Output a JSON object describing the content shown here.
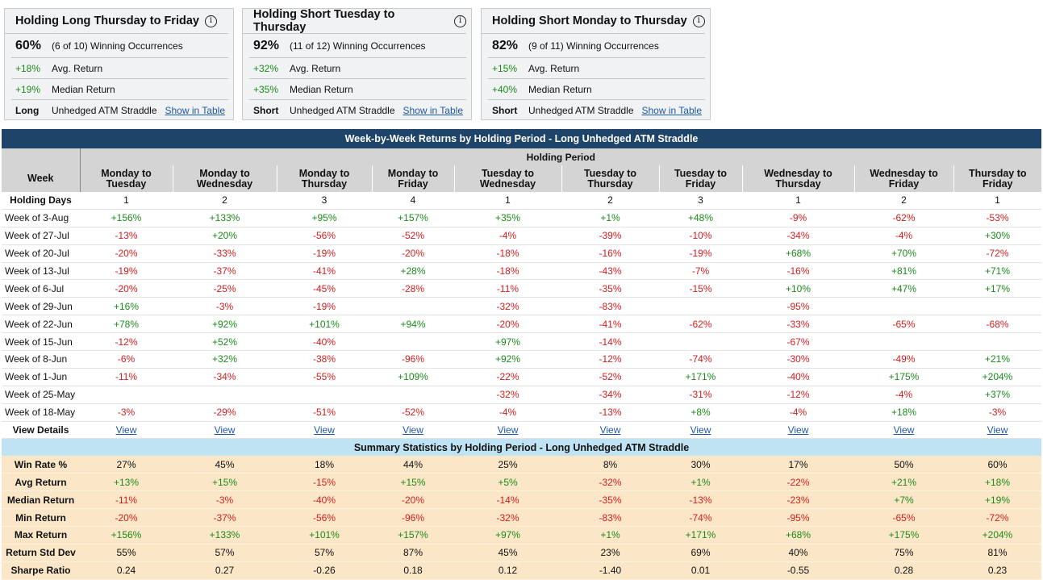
{
  "cards": [
    {
      "title": "Holding Long Thursday to Friday",
      "pct": "60%",
      "occ": "(6 of 10) Winning Occurrences",
      "avg": "+18%",
      "avg_label": "Avg. Return",
      "med": "+19%",
      "med_label": "Median Return",
      "side": "Long",
      "strategy": "Unhedged ATM Straddle",
      "link": "Show in Table"
    },
    {
      "title": "Holding Short Tuesday to Thursday",
      "pct": "92%",
      "occ": "(11 of 12) Winning Occurrences",
      "avg": "+32%",
      "avg_label": "Avg. Return",
      "med": "+35%",
      "med_label": "Median Return",
      "side": "Short",
      "strategy": "Unhedged ATM Straddle",
      "link": "Show in Table"
    },
    {
      "title": "Holding Short Monday to Thursday",
      "pct": "82%",
      "occ": "(9 of 11) Winning Occurrences",
      "avg": "+15%",
      "avg_label": "Avg. Return",
      "med": "+40%",
      "med_label": "Median Return",
      "side": "Short",
      "strategy": "Unhedged ATM Straddle",
      "link": "Show in Table"
    }
  ],
  "table": {
    "title": "Week-by-Week Returns by Holding Period - Long Unhedged ATM Straddle",
    "holding_period_label": "Holding Period",
    "week_header": "Week",
    "columns": [
      [
        "Monday to",
        "Tuesday"
      ],
      [
        "Monday to",
        "Wednesday"
      ],
      [
        "Monday to",
        "Thursday"
      ],
      [
        "Monday to",
        "Friday"
      ],
      [
        "Tuesday to",
        "Wednesday"
      ],
      [
        "Tuesday to",
        "Thursday"
      ],
      [
        "Tuesday to",
        "Friday"
      ],
      [
        "Wednesday to",
        "Thursday"
      ],
      [
        "Wednesday to",
        "Friday"
      ],
      [
        "Thursday to",
        "Friday"
      ]
    ],
    "holding_days_label": "Holding Days",
    "holding_days": [
      "1",
      "2",
      "3",
      "4",
      "1",
      "2",
      "3",
      "1",
      "2",
      "1"
    ],
    "weeks": [
      {
        "label": "Week of 3-Aug",
        "values": [
          "+156%",
          "+133%",
          "+95%",
          "+157%",
          "+35%",
          "+1%",
          "+48%",
          "-9%",
          "-62%",
          "-53%"
        ]
      },
      {
        "label": "Week of 27-Jul",
        "values": [
          "-13%",
          "+20%",
          "-56%",
          "-52%",
          "-4%",
          "-39%",
          "-10%",
          "-34%",
          "-4%",
          "+30%"
        ]
      },
      {
        "label": "Week of 20-Jul",
        "values": [
          "-20%",
          "-33%",
          "-19%",
          "-20%",
          "-18%",
          "-16%",
          "-19%",
          "+68%",
          "+70%",
          "-72%"
        ]
      },
      {
        "label": "Week of 13-Jul",
        "values": [
          "-19%",
          "-37%",
          "-41%",
          "+28%",
          "-18%",
          "-43%",
          "-7%",
          "-16%",
          "+81%",
          "+71%"
        ]
      },
      {
        "label": "Week of 6-Jul",
        "values": [
          "-20%",
          "-25%",
          "-45%",
          "-28%",
          "-11%",
          "-35%",
          "-15%",
          "+10%",
          "+47%",
          "+17%"
        ]
      },
      {
        "label": "Week of 29-Jun",
        "values": [
          "+16%",
          "-3%",
          "-19%",
          "",
          "-32%",
          "-83%",
          "",
          "-95%",
          "",
          ""
        ]
      },
      {
        "label": "Week of 22-Jun",
        "values": [
          "+78%",
          "+92%",
          "+101%",
          "+94%",
          "-20%",
          "-41%",
          "-62%",
          "-33%",
          "-65%",
          "-68%"
        ]
      },
      {
        "label": "Week of 15-Jun",
        "values": [
          "-12%",
          "+52%",
          "-40%",
          "",
          "+97%",
          "-14%",
          "",
          "-67%",
          "",
          ""
        ]
      },
      {
        "label": "Week of 8-Jun",
        "values": [
          "-6%",
          "+32%",
          "-38%",
          "-96%",
          "+92%",
          "-12%",
          "-74%",
          "-30%",
          "-49%",
          "+21%"
        ]
      },
      {
        "label": "Week of 1-Jun",
        "values": [
          "-11%",
          "-34%",
          "-55%",
          "+109%",
          "-22%",
          "-52%",
          "+171%",
          "-40%",
          "+175%",
          "+204%"
        ]
      },
      {
        "label": "Week of 25-May",
        "values": [
          "",
          "",
          "",
          "",
          "-32%",
          "-34%",
          "-31%",
          "-12%",
          "-4%",
          "+37%"
        ]
      },
      {
        "label": "Week of 18-May",
        "values": [
          "-3%",
          "-29%",
          "-51%",
          "-52%",
          "-4%",
          "-13%",
          "+8%",
          "-4%",
          "+18%",
          "-3%"
        ]
      }
    ],
    "view_details_label": "View Details",
    "view_link": "View",
    "summary_title": "Summary Statistics by Holding Period - Long Unhedged ATM Straddle",
    "stats": [
      {
        "label": "Win Rate %",
        "values": [
          "27%",
          "45%",
          "18%",
          "44%",
          "25%",
          "8%",
          "30%",
          "17%",
          "50%",
          "60%"
        ]
      },
      {
        "label": "Avg Return",
        "values": [
          "+13%",
          "+15%",
          "-15%",
          "+15%",
          "+5%",
          "-32%",
          "+1%",
          "-22%",
          "+21%",
          "+18%"
        ]
      },
      {
        "label": "Median Return",
        "values": [
          "-11%",
          "-3%",
          "-40%",
          "-20%",
          "-14%",
          "-35%",
          "-13%",
          "-23%",
          "+7%",
          "+19%"
        ]
      },
      {
        "label": "Min Return",
        "values": [
          "-20%",
          "-37%",
          "-56%",
          "-96%",
          "-32%",
          "-83%",
          "-74%",
          "-95%",
          "-65%",
          "-72%"
        ]
      },
      {
        "label": "Max Return",
        "values": [
          "+156%",
          "+133%",
          "+101%",
          "+157%",
          "+97%",
          "+1%",
          "+171%",
          "+68%",
          "+175%",
          "+204%"
        ]
      },
      {
        "label": "Return Std Dev",
        "values": [
          "55%",
          "57%",
          "57%",
          "87%",
          "45%",
          "23%",
          "69%",
          "40%",
          "75%",
          "81%"
        ]
      },
      {
        "label": "Sharpe Ratio",
        "values": [
          "0.24",
          "0.27",
          "-0.26",
          "0.18",
          "0.12",
          "-1.40",
          "0.01",
          "-0.55",
          "0.28",
          "0.23"
        ]
      }
    ]
  },
  "colors": {
    "positive": "#1c8a1c",
    "negative": "#d21e1e",
    "title_bar": "#1f4469",
    "summary_bar": "#bfe3f3",
    "stats_bg": "#fbe7c8"
  }
}
